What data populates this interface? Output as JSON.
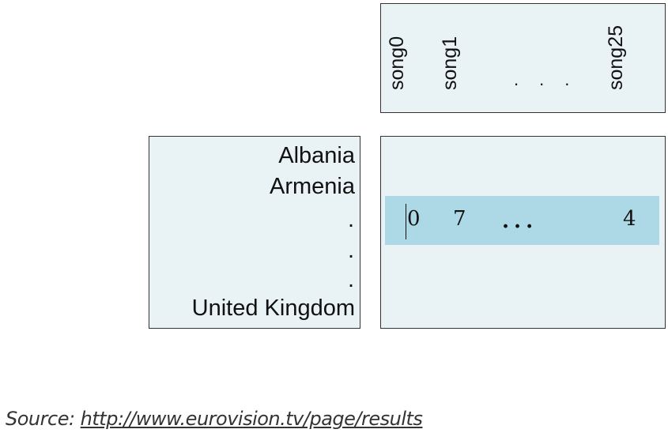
{
  "songs": {
    "labels": [
      "song0",
      "song1",
      "song25"
    ],
    "ellipsis": "..."
  },
  "countries": {
    "labels": [
      "Albania",
      "Armenia",
      "United Kingdom"
    ],
    "dots": [
      ".",
      ".",
      "."
    ]
  },
  "matrix": {
    "row_values": [
      "0",
      "7",
      "4"
    ],
    "ellipsis": "..."
  },
  "source": {
    "prefix": "Source: ",
    "url": "http://www.eurovision.tv/page/results"
  },
  "colors": {
    "panel_background": "#e9f3f6",
    "highlight_row": "#add8e6"
  }
}
